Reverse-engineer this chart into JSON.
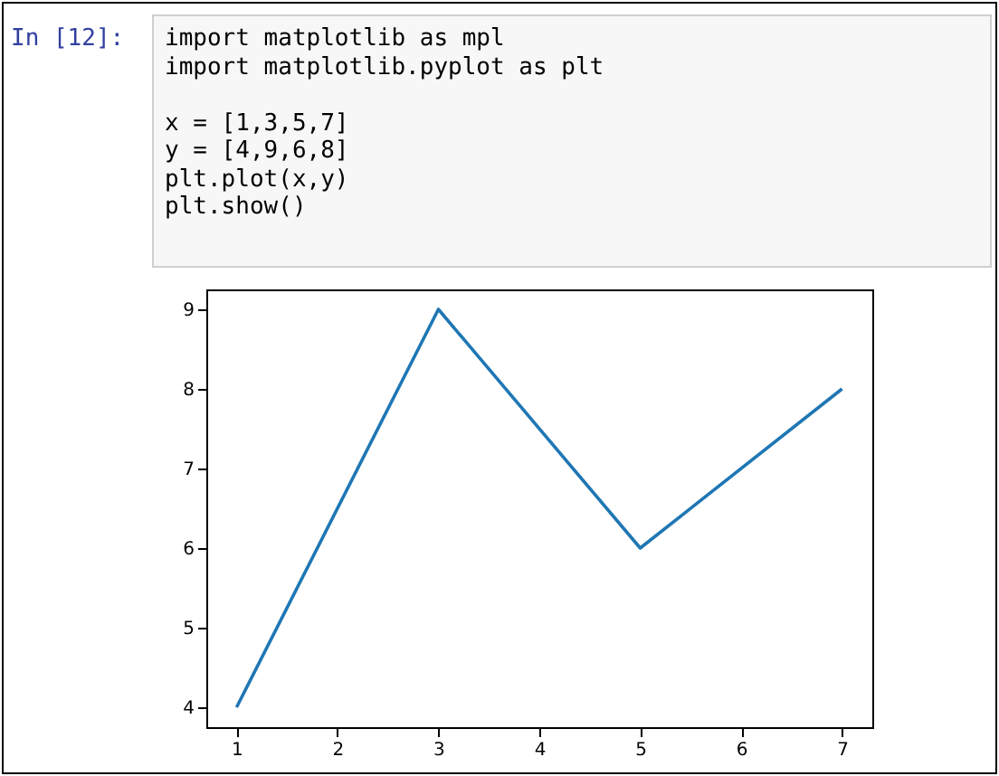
{
  "chart_data": {
    "type": "line",
    "annotations": [
      "In [12]:",
      "import matplotlib as mpl",
      "import matplotlib.pyplot as plt",
      "x = [1,3,5,7]",
      "y = [4,9,6,8]",
      "plt.plot(x,y)",
      "plt.show()"
    ],
    "x": [
      1,
      3,
      5,
      7
    ],
    "series": [
      {
        "color": "#1f77b4",
        "values": [
          4,
          9,
          6,
          8
        ]
      }
    ],
    "xlim": [
      0.7,
      7.3
    ],
    "ylim": [
      3.75,
      9.25
    ],
    "xticks": [
      1,
      2,
      3,
      4,
      5,
      6,
      7
    ],
    "yticks": [
      4,
      5,
      6,
      7,
      8,
      9
    ],
    "grid": false,
    "marker": "none",
    "line_style": "solid"
  }
}
